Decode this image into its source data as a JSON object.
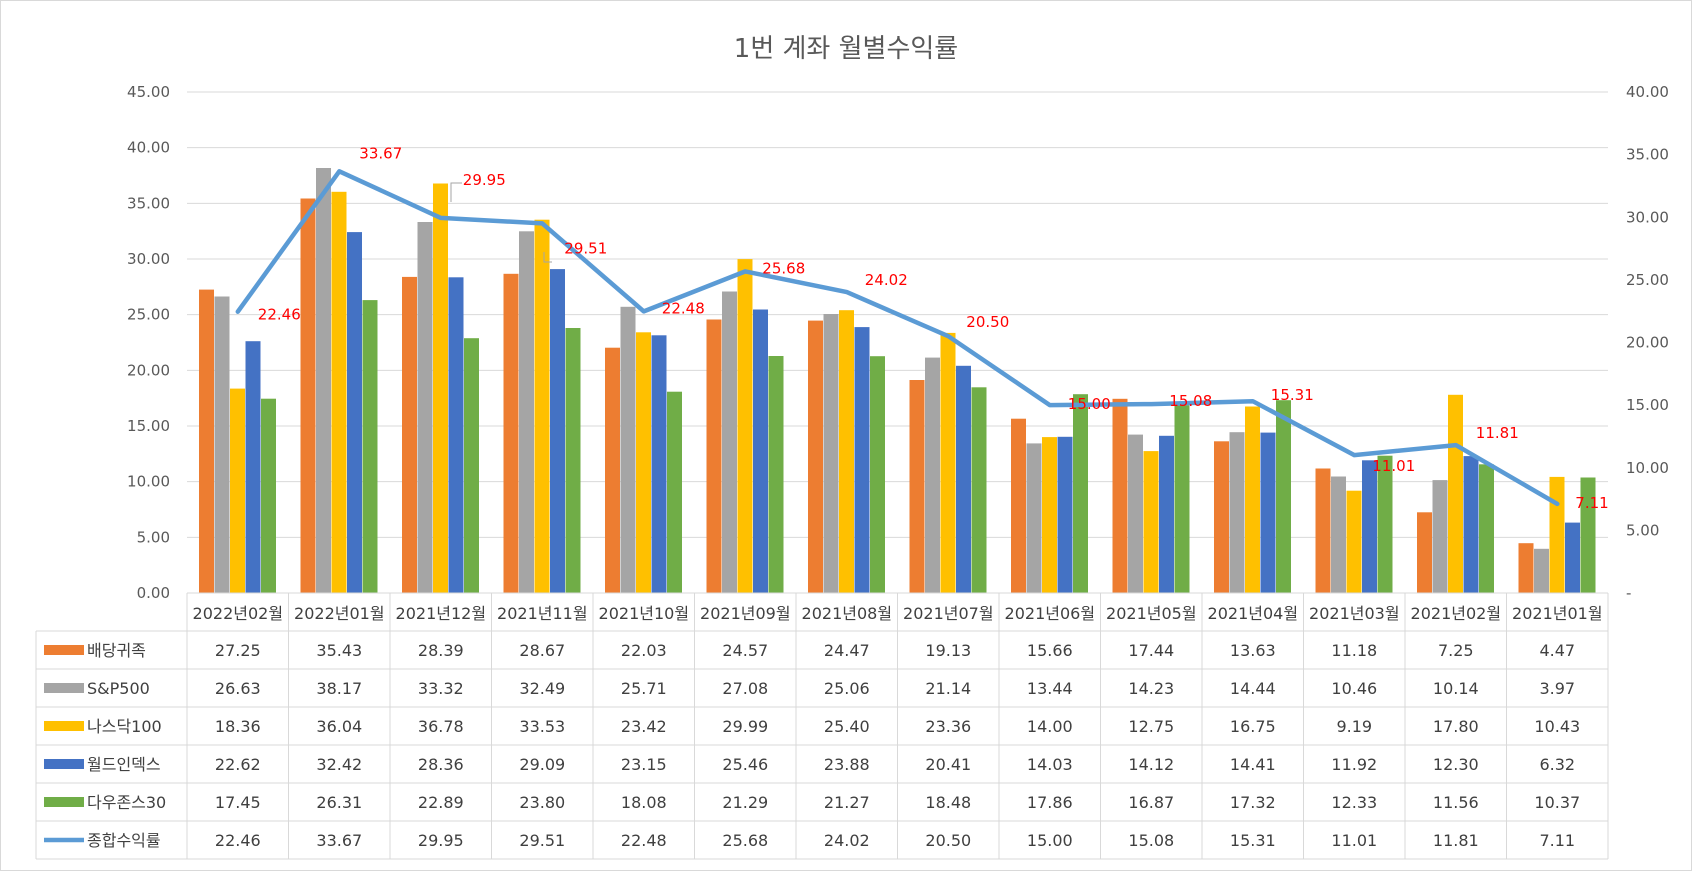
{
  "chart_data": {
    "type": "bar",
    "title": "1번 계좌 월별수익률",
    "categories": [
      "2022년02월",
      "2022년01월",
      "2021년12월",
      "2021년11월",
      "2021년10월",
      "2021년09월",
      "2021년08월",
      "2021년07월",
      "2021년06월",
      "2021년05월",
      "2021년04월",
      "2021년03월",
      "2021년02월",
      "2021년01월"
    ],
    "series": [
      {
        "name": "배당귀족",
        "color": "#ed7d31",
        "values": [
          27.25,
          35.43,
          28.39,
          28.67,
          22.03,
          24.57,
          24.47,
          19.13,
          15.66,
          17.44,
          13.63,
          11.18,
          7.25,
          4.47
        ]
      },
      {
        "name": "S&P500",
        "color": "#a5a5a5",
        "values": [
          26.63,
          38.17,
          33.32,
          32.49,
          25.71,
          27.08,
          25.06,
          21.14,
          13.44,
          14.23,
          14.44,
          10.46,
          10.14,
          3.97
        ]
      },
      {
        "name": "나스닥100",
        "color": "#ffc000",
        "values": [
          18.36,
          36.04,
          36.78,
          33.53,
          23.42,
          29.99,
          25.4,
          23.36,
          14.0,
          12.75,
          16.75,
          9.19,
          17.8,
          10.43
        ]
      },
      {
        "name": "월드인덱스",
        "color": "#4472c4",
        "values": [
          22.62,
          32.42,
          28.36,
          29.09,
          23.15,
          25.46,
          23.88,
          20.41,
          14.03,
          14.12,
          14.41,
          11.92,
          12.3,
          6.32
        ]
      },
      {
        "name": "다우존스30",
        "color": "#70ad47",
        "values": [
          17.45,
          26.31,
          22.89,
          23.8,
          18.08,
          21.29,
          21.27,
          18.48,
          17.86,
          16.87,
          17.32,
          12.33,
          11.56,
          10.37
        ]
      }
    ],
    "line_series": {
      "name": "종합수익률",
      "type": "line",
      "axis": "secondary",
      "color": "#5b9bd5",
      "values": [
        22.46,
        33.67,
        29.95,
        29.51,
        22.48,
        25.68,
        24.02,
        20.5,
        15.0,
        15.08,
        15.31,
        11.01,
        11.81,
        7.11
      ]
    },
    "line_labels": [
      "22.46",
      "33.67",
      "29.95",
      "29.51",
      "22.48",
      "25.68",
      "24.02",
      "20.50",
      "15.00",
      "15.08",
      "15.31",
      "11.01",
      "11.81",
      "7.11"
    ],
    "line_label_color": "#ff0000",
    "ylim": [
      0,
      45
    ],
    "yticks": [
      "0.00",
      "5.00",
      "10.00",
      "15.00",
      "20.00",
      "25.00",
      "30.00",
      "35.00",
      "40.00",
      "45.00"
    ],
    "y2lim": [
      0,
      40
    ],
    "y2ticks": [
      "-",
      "5.00",
      "10.00",
      "15.00",
      "20.00",
      "25.00",
      "30.00",
      "35.00",
      "40.00"
    ],
    "grid": true,
    "data_table": true,
    "table_values": [
      [
        "27.25",
        "35.43",
        "28.39",
        "28.67",
        "22.03",
        "24.57",
        "24.47",
        "19.13",
        "15.66",
        "17.44",
        "13.63",
        "11.18",
        "7.25",
        "4.47"
      ],
      [
        "26.63",
        "38.17",
        "33.32",
        "32.49",
        "25.71",
        "27.08",
        "25.06",
        "21.14",
        "13.44",
        "14.23",
        "14.44",
        "10.46",
        "10.14",
        "3.97"
      ],
      [
        "18.36",
        "36.04",
        "36.78",
        "33.53",
        "23.42",
        "29.99",
        "25.40",
        "23.36",
        "14.00",
        "12.75",
        "16.75",
        "9.19",
        "17.80",
        "10.43"
      ],
      [
        "22.62",
        "32.42",
        "28.36",
        "29.09",
        "23.15",
        "25.46",
        "23.88",
        "20.41",
        "14.03",
        "14.12",
        "14.41",
        "11.92",
        "12.30",
        "6.32"
      ],
      [
        "17.45",
        "26.31",
        "22.89",
        "23.80",
        "18.08",
        "21.29",
        "21.27",
        "18.48",
        "17.86",
        "16.87",
        "17.32",
        "12.33",
        "11.56",
        "10.37"
      ],
      [
        "22.46",
        "33.67",
        "29.95",
        "29.51",
        "22.48",
        "25.68",
        "24.02",
        "20.50",
        "15.00",
        "15.08",
        "15.31",
        "11.01",
        "11.81",
        "7.11"
      ]
    ]
  }
}
